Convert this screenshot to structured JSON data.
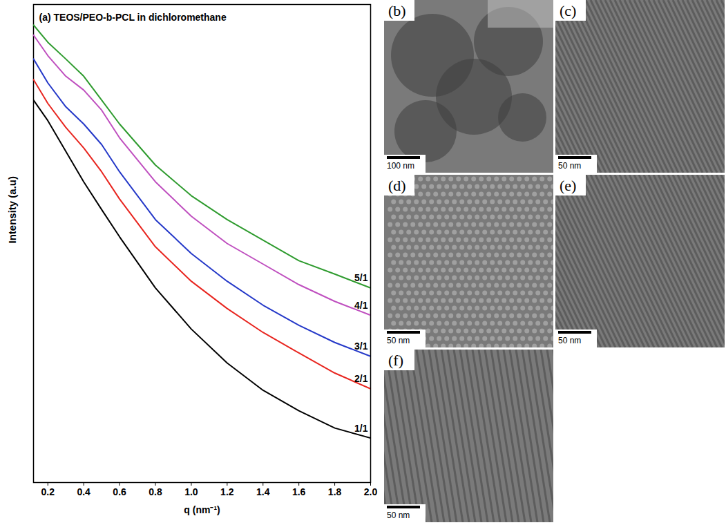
{
  "chart_data": {
    "type": "line",
    "title": "(a) TEOS/PEO-b-PCL in dichloromethane",
    "x_label": "q (nm⁻¹)",
    "y_label": "Intensity (a.u)",
    "x": [
      0.12,
      0.2,
      0.3,
      0.4,
      0.5,
      0.6,
      0.8,
      1.0,
      1.2,
      1.4,
      1.6,
      1.8,
      2.0
    ],
    "series": [
      {
        "name": "1/1",
        "color": "#000000",
        "values": [
          80,
          75.7,
          69.3,
          62.9,
          57.1,
          51.4,
          40.7,
          32.1,
          25,
          19.3,
          15,
          11.4,
          9.3
        ]
      },
      {
        "name": "2/1",
        "color": "#e8251f",
        "values": [
          84.3,
          79.3,
          74.3,
          70,
          65,
          59.3,
          49.3,
          42.1,
          36.4,
          31.4,
          27.1,
          22.9,
          19.6
        ]
      },
      {
        "name": "3/1",
        "color": "#2438c8",
        "values": [
          88.6,
          83.6,
          78.6,
          75,
          70.7,
          65,
          55,
          47.9,
          42.1,
          37.1,
          32.9,
          29.3,
          26.4
        ]
      },
      {
        "name": "4/1",
        "color": "#bf4fbf",
        "values": [
          93.6,
          89.3,
          85,
          82.1,
          77.9,
          72.1,
          62.9,
          55.7,
          50,
          45.7,
          41.4,
          37.9,
          35
        ]
      },
      {
        "name": "5/1",
        "color": "#2e9b2e",
        "values": [
          95.7,
          92.1,
          88.6,
          85,
          80,
          75,
          66.4,
          60,
          55,
          50.7,
          46.4,
          43.6,
          40.7
        ]
      }
    ],
    "xlim": [
      0.12,
      2.0
    ],
    "xticks": [
      0.2,
      0.4,
      0.6,
      0.8,
      {
        "value": 1,
        "label": "1.0"
      },
      1.2,
      1.4,
      1.6,
      1.8,
      {
        "value": 2,
        "label": "2.0"
      }
    ],
    "ylim": [
      0,
      100
    ],
    "yticks": [],
    "tick_labels": "x",
    "grid": false
  },
  "tem_images": [
    {
      "label": "(b)",
      "scale_bar": "100 nm"
    },
    {
      "label": "(c)",
      "scale_bar": "50 nm"
    },
    {
      "label": "(d)",
      "scale_bar": "50 nm"
    },
    {
      "label": "(e)",
      "scale_bar": "50 nm"
    },
    {
      "label": "(f)",
      "scale_bar": "50 nm"
    }
  ]
}
